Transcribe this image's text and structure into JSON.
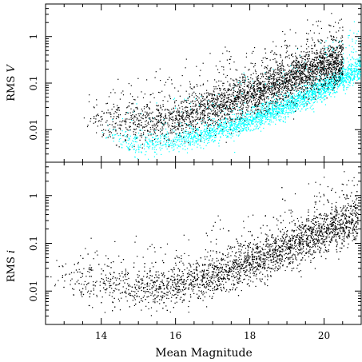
{
  "chart_data": [
    {
      "type": "scatter",
      "panel": "top",
      "ylabel_text": "RMS",
      "ylabel_var": "V",
      "xlabel": "",
      "xlim": [
        12.5,
        21
      ],
      "ylim": [
        0.002,
        5
      ],
      "yscale": "log",
      "grid": false,
      "x_ticks": [
        14,
        16,
        18,
        20
      ],
      "y_ticks": [
        0.01,
        0.1,
        1
      ],
      "y_tick_labels": [
        "0.01",
        "0.1",
        "1"
      ],
      "colors": {
        "points_black": "#000000",
        "points_cyan": "#00ffff"
      },
      "series": [
        {
          "color": "#000000",
          "trend": [
            {
              "x": 13.5,
              "y": 0.018
            },
            {
              "x": 14.5,
              "y": 0.014
            },
            {
              "x": 15.5,
              "y": 0.015
            },
            {
              "x": 16.5,
              "y": 0.022
            },
            {
              "x": 17.5,
              "y": 0.04
            },
            {
              "x": 18.5,
              "y": 0.08
            },
            {
              "x": 19.5,
              "y": 0.17
            },
            {
              "x": 20.5,
              "y": 0.3
            }
          ]
        },
        {
          "color": "#00ffff",
          "trend": [
            {
              "x": 14.0,
              "y": 0.009
            },
            {
              "x": 15.0,
              "y": 0.0045
            },
            {
              "x": 16.0,
              "y": 0.006
            },
            {
              "x": 17.0,
              "y": 0.009
            },
            {
              "x": 18.0,
              "y": 0.016
            },
            {
              "x": 19.0,
              "y": 0.033
            },
            {
              "x": 20.0,
              "y": 0.08
            },
            {
              "x": 21.0,
              "y": 0.22
            }
          ]
        }
      ]
    },
    {
      "type": "scatter",
      "panel": "bottom",
      "ylabel_text": "RMS",
      "ylabel_var": "i",
      "xlabel": "Mean Magnitude",
      "xlim": [
        12.5,
        21
      ],
      "ylim": [
        0.002,
        5
      ],
      "yscale": "log",
      "grid": false,
      "x_ticks": [
        14,
        16,
        18,
        20
      ],
      "x_tick_labels": [
        "14",
        "16",
        "18",
        "20"
      ],
      "y_ticks": [
        0.01,
        0.1,
        1
      ],
      "y_tick_labels": [
        "0.01",
        "0.1",
        "1"
      ],
      "series": [
        {
          "color": "#000000",
          "trend": [
            {
              "x": 12.6,
              "y": 0.02
            },
            {
              "x": 13.5,
              "y": 0.016
            },
            {
              "x": 14.5,
              "y": 0.012
            },
            {
              "x": 15.5,
              "y": 0.012
            },
            {
              "x": 16.5,
              "y": 0.016
            },
            {
              "x": 17.5,
              "y": 0.028
            },
            {
              "x": 18.5,
              "y": 0.055
            },
            {
              "x": 19.5,
              "y": 0.12
            },
            {
              "x": 20.5,
              "y": 0.25
            },
            {
              "x": 20.9,
              "y": 0.32
            }
          ]
        }
      ]
    }
  ]
}
